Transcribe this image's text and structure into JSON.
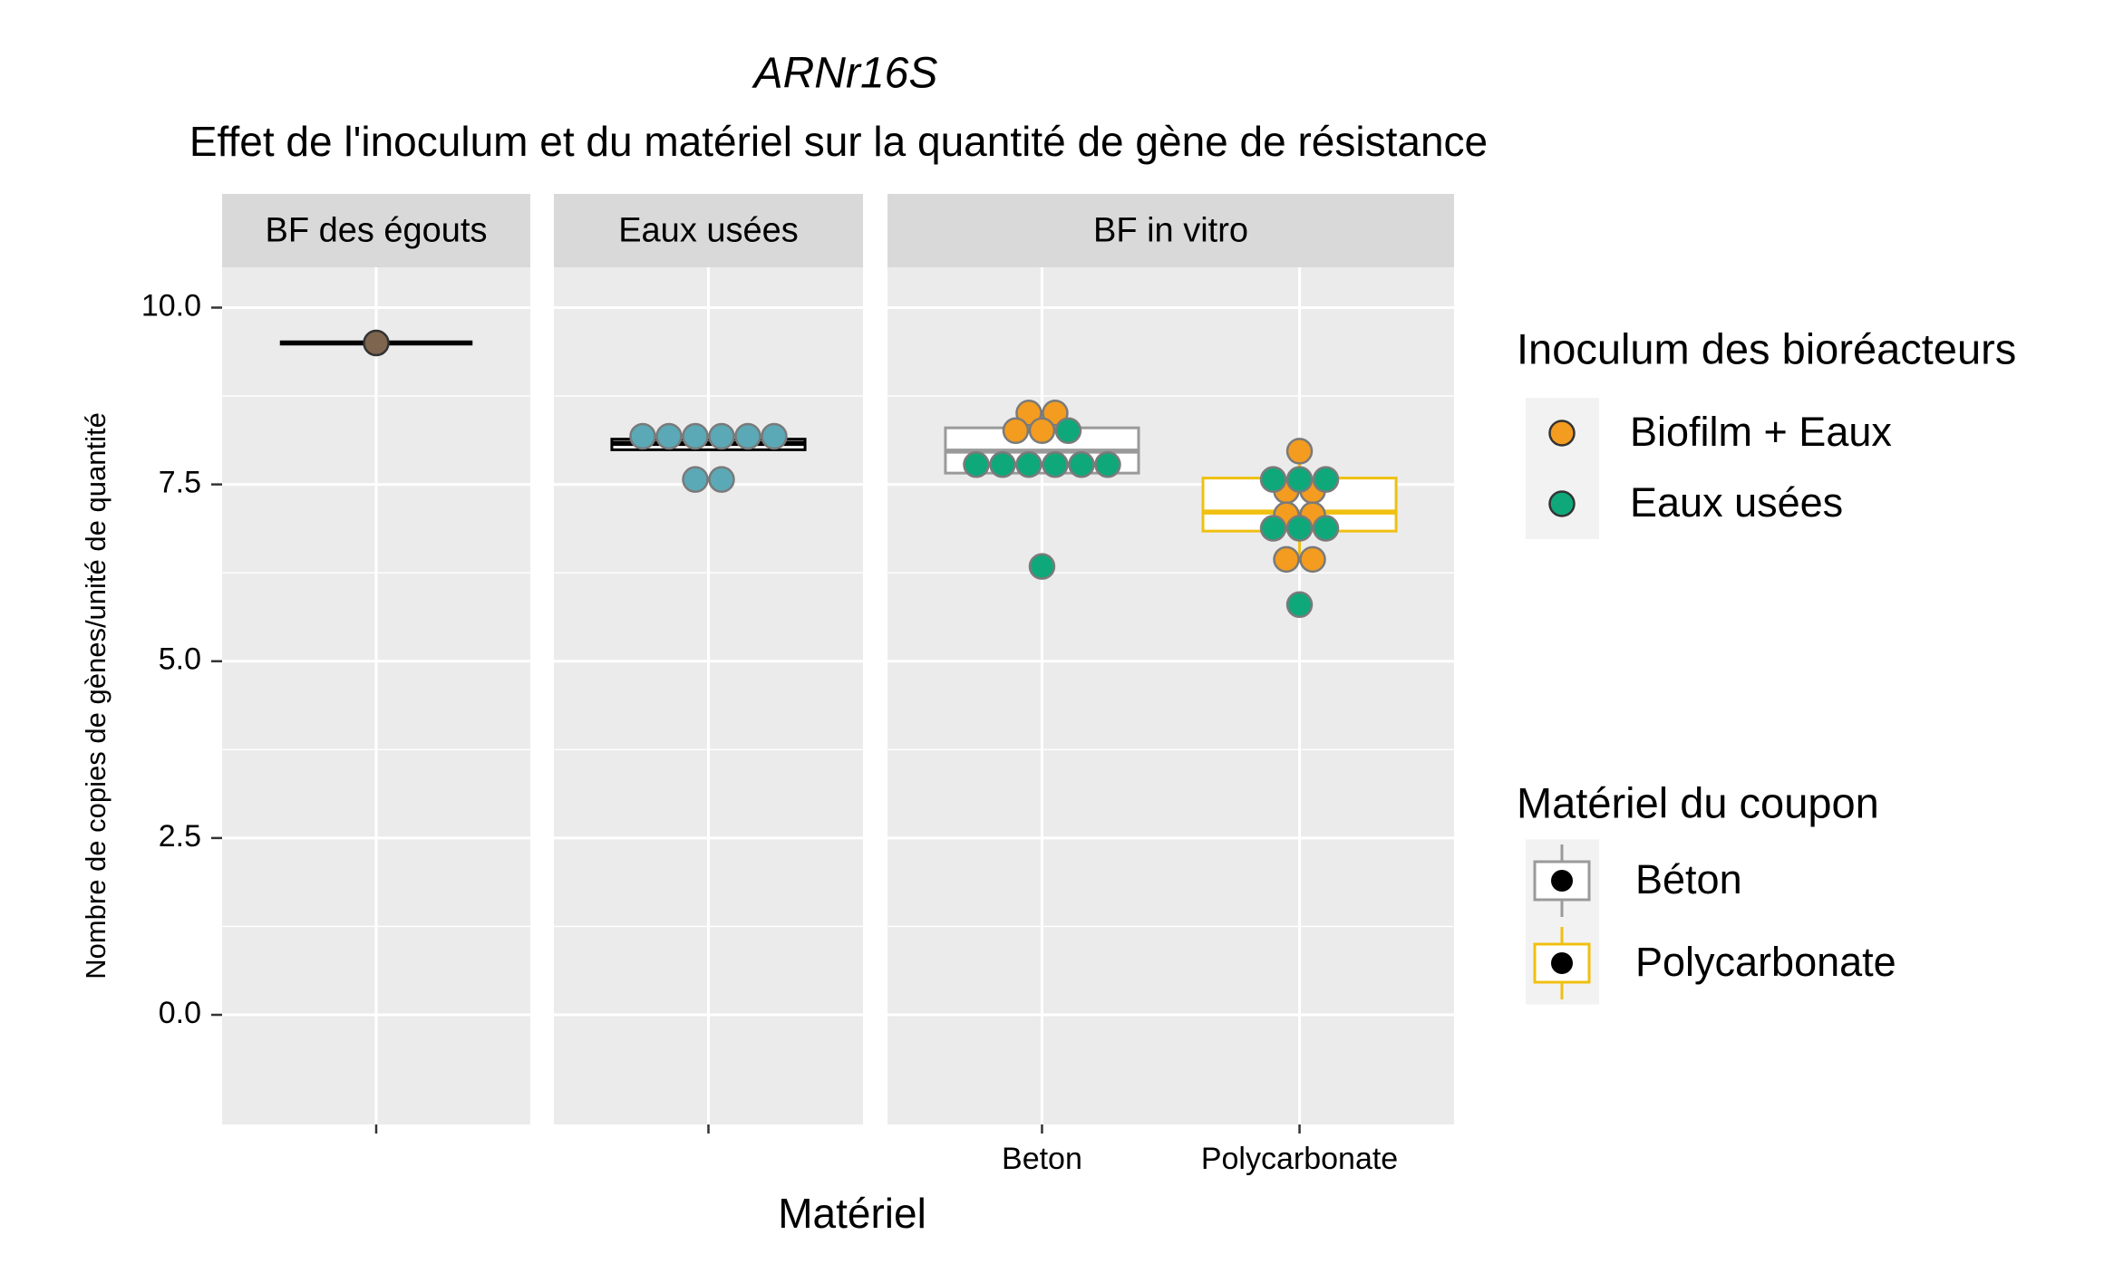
{
  "title": "ARNr16S",
  "subtitle": "Effet de l'inoculum et du matériel sur la quantité de gène de résistance",
  "xlabel": "Matériel",
  "ylabel": "Nombre de copies de gènes/unité de quantité",
  "ylim": [
    -1.55,
    10.57
  ],
  "yticks": [
    {
      "value": 0,
      "label": "0.0"
    },
    2.5,
    {
      "value": 5,
      "label": "5.0"
    },
    7.5,
    {
      "value": 10,
      "label": "10.0"
    }
  ],
  "grid": true,
  "legends": [
    {
      "title": "Inoculum des bioréacteurs",
      "key_shape": "point",
      "keys": [
        {
          "label": "Biofilm + Eaux",
          "color": "#f39c1f"
        },
        {
          "label": "Eaux usées",
          "color": "#0fa87a"
        }
      ]
    },
    {
      "title": "Matériel du coupon",
      "key_shape": "box",
      "keys": [
        {
          "label": "Béton",
          "color": "#9a9a9a"
        },
        {
          "label": "Polycarbonate",
          "color": "#f0c010"
        }
      ]
    }
  ],
  "chart_data": [
    {
      "type": "boxplot",
      "facet": "BF des égouts",
      "categories": [
        null
      ],
      "boxes": [
        {
          "whisker_low": 9.5,
          "q1": 9.5,
          "median": 9.5,
          "q3": 9.5,
          "whisker_high": 9.5,
          "color": "#000000"
        }
      ],
      "series": [
        {
          "color": "#7d6550",
          "values": [
            [
              9.5
            ]
          ]
        }
      ]
    },
    {
      "type": "boxplot",
      "facet": "Eaux usées",
      "categories": [
        null
      ],
      "boxes": [
        {
          "whisker_low": 7.99,
          "q1": 7.99,
          "median": 8.08,
          "q3": 8.14,
          "whisker_high": 8.18,
          "color": "#000000"
        }
      ],
      "series": [
        {
          "color": "#5ba9b6",
          "values": [
            [
              8.18,
              8.18,
              8.18,
              8.18,
              8.18,
              8.18,
              7.57,
              7.57
            ]
          ]
        }
      ]
    },
    {
      "type": "boxplot",
      "facet": "BF in vitro",
      "categories": [
        "Beton",
        "Polycarbonate"
      ],
      "boxes": [
        {
          "whisker_low": 7.66,
          "q1": 7.66,
          "median": 7.97,
          "q3": 8.3,
          "whisker_high": 8.51,
          "color": "#9a9a9a"
        },
        {
          "whisker_low": 6.44,
          "q1": 6.84,
          "median": 7.11,
          "q3": 7.59,
          "whisker_high": 7.97,
          "color": "#f0c010"
        }
      ],
      "series": [
        {
          "color": "#f39c1f",
          "values": [
            [
              8.51,
              8.51,
              8.26,
              8.26
            ],
            [
              7.97,
              7.41,
              7.41,
              7.07,
              7.07,
              6.44,
              6.44
            ]
          ]
        },
        {
          "color": "#0fa87a",
          "values": [
            [
              8.26,
              7.78,
              7.78,
              7.78,
              7.78,
              7.78,
              7.78,
              6.34
            ],
            [
              7.57,
              7.57,
              7.57,
              6.88,
              6.88,
              6.88,
              5.8
            ]
          ]
        }
      ]
    }
  ]
}
